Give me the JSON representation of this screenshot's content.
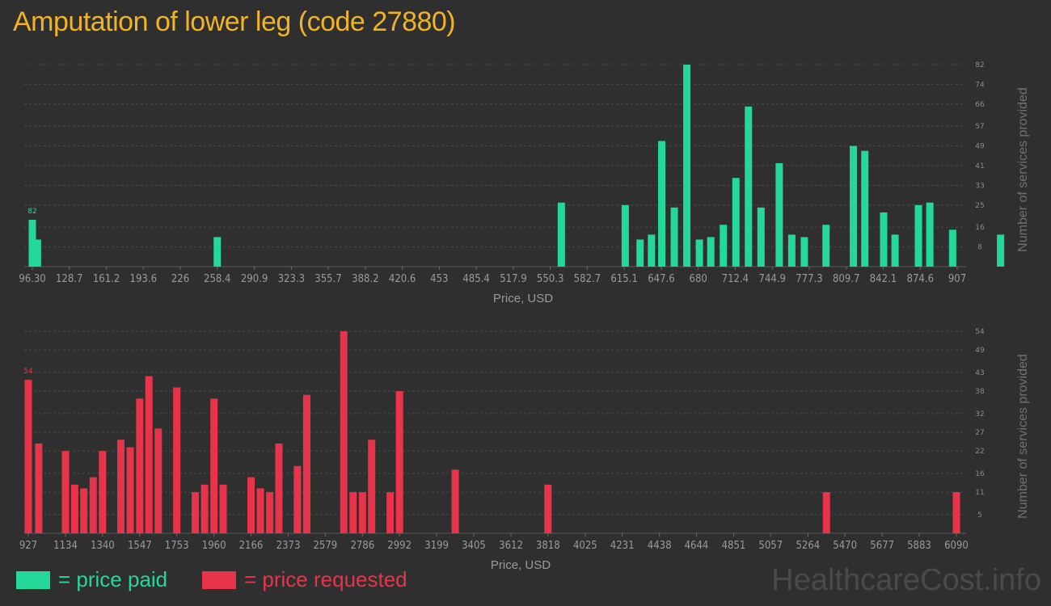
{
  "title": "Amputation of lower leg (code 27880)",
  "legend": {
    "paid_label": "= price paid",
    "requested_label": "= price requested",
    "paid_color": "#23d898",
    "requested_color": "#e8344a"
  },
  "watermark": "HealthcareCost.info",
  "chart_data": [
    {
      "type": "bar",
      "name": "price paid",
      "xlabel": "Price, USD",
      "ylabel": "Number of services provided",
      "x_ticks": [
        "96.30",
        "128.7",
        "161.2",
        "193.6",
        "226",
        "258.4",
        "290.9",
        "323.3",
        "355.7",
        "388.2",
        "420.6",
        "453",
        "485.4",
        "517.9",
        "550.3",
        "582.7",
        "615.1",
        "647.6",
        "680",
        "712.4",
        "744.9",
        "777.3",
        "809.7",
        "842.1",
        "874.6",
        "907"
      ],
      "y_ticks": [
        "8",
        "16",
        "25",
        "33",
        "41",
        "49",
        "57",
        "66",
        "74",
        "82"
      ],
      "ylim": [
        0,
        82
      ],
      "grid": true,
      "max_label": "82",
      "bars": [
        {
          "x": 96.3,
          "y": 19
        },
        {
          "x": 100.8,
          "y": 11
        },
        {
          "x": 258.4,
          "y": 12
        },
        {
          "x": 560.0,
          "y": 26
        },
        {
          "x": 616.0,
          "y": 25
        },
        {
          "x": 629.0,
          "y": 11
        },
        {
          "x": 639.0,
          "y": 13
        },
        {
          "x": 648.0,
          "y": 51
        },
        {
          "x": 659.0,
          "y": 24
        },
        {
          "x": 670.0,
          "y": 82
        },
        {
          "x": 681.0,
          "y": 11
        },
        {
          "x": 691.0,
          "y": 12
        },
        {
          "x": 702.0,
          "y": 17
        },
        {
          "x": 713.0,
          "y": 36
        },
        {
          "x": 724.0,
          "y": 65
        },
        {
          "x": 735.0,
          "y": 24
        },
        {
          "x": 751.0,
          "y": 42
        },
        {
          "x": 762.0,
          "y": 13
        },
        {
          "x": 773.0,
          "y": 12
        },
        {
          "x": 792.0,
          "y": 17
        },
        {
          "x": 816.0,
          "y": 49
        },
        {
          "x": 826.0,
          "y": 47
        },
        {
          "x": 842.5,
          "y": 22
        },
        {
          "x": 852.5,
          "y": 13
        },
        {
          "x": 873.0,
          "y": 25
        },
        {
          "x": 883.0,
          "y": 26
        },
        {
          "x": 903.0,
          "y": 15
        },
        {
          "x": 945.0,
          "y": 13
        }
      ]
    },
    {
      "type": "bar",
      "name": "price requested",
      "xlabel": "Price, USD",
      "ylabel": "Number of services provided",
      "x_ticks": [
        "927",
        "1134",
        "1340",
        "1547",
        "1753",
        "1960",
        "2166",
        "2373",
        "2579",
        "2786",
        "2992",
        "3199",
        "3405",
        "3612",
        "3818",
        "4025",
        "4231",
        "4438",
        "4644",
        "4851",
        "5057",
        "5264",
        "5470",
        "5677",
        "5883",
        "6090"
      ],
      "y_ticks": [
        "5",
        "11",
        "16",
        "22",
        "27",
        "32",
        "38",
        "43",
        "49",
        "54"
      ],
      "ylim": [
        0,
        54
      ],
      "grid": true,
      "max_label": "54",
      "bars": [
        {
          "x": 927,
          "y": 41
        },
        {
          "x": 985,
          "y": 24
        },
        {
          "x": 1134,
          "y": 22
        },
        {
          "x": 1185,
          "y": 13
        },
        {
          "x": 1236,
          "y": 12
        },
        {
          "x": 1288,
          "y": 15
        },
        {
          "x": 1340,
          "y": 22
        },
        {
          "x": 1442,
          "y": 25
        },
        {
          "x": 1494,
          "y": 23
        },
        {
          "x": 1547,
          "y": 36
        },
        {
          "x": 1598,
          "y": 42
        },
        {
          "x": 1650,
          "y": 28
        },
        {
          "x": 1753,
          "y": 39
        },
        {
          "x": 1856,
          "y": 11
        },
        {
          "x": 1908,
          "y": 13
        },
        {
          "x": 1960,
          "y": 36
        },
        {
          "x": 2011,
          "y": 13
        },
        {
          "x": 2166,
          "y": 15
        },
        {
          "x": 2218,
          "y": 12
        },
        {
          "x": 2270,
          "y": 11
        },
        {
          "x": 2321,
          "y": 24
        },
        {
          "x": 2424,
          "y": 18
        },
        {
          "x": 2476,
          "y": 37
        },
        {
          "x": 2682,
          "y": 54
        },
        {
          "x": 2734,
          "y": 11
        },
        {
          "x": 2786,
          "y": 11
        },
        {
          "x": 2837,
          "y": 25
        },
        {
          "x": 2940,
          "y": 11
        },
        {
          "x": 2992,
          "y": 38
        },
        {
          "x": 3302,
          "y": 17
        },
        {
          "x": 3818,
          "y": 13
        },
        {
          "x": 5367,
          "y": 11
        },
        {
          "x": 6090,
          "y": 11
        }
      ]
    }
  ]
}
